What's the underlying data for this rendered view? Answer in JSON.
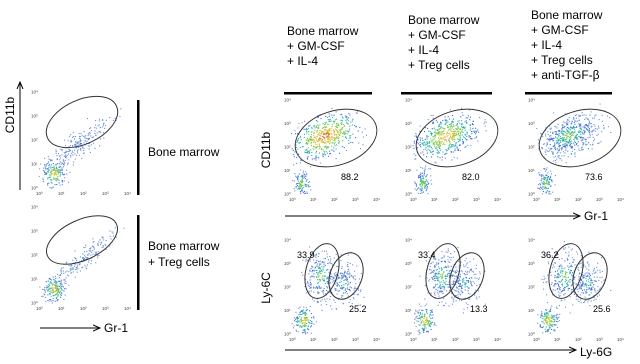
{
  "ticks": [
    "10⁰",
    "10¹",
    "10²",
    "10³",
    "10⁴"
  ],
  "left": {
    "y_axis": "CD11b",
    "x_axis": "Gr-1",
    "rows": [
      {
        "lines": [
          "Bone marrow"
        ]
      },
      {
        "lines": [
          "Bone marrow",
          "+ Treg cells"
        ]
      }
    ]
  },
  "columns": [
    {
      "lines": [
        "Bone marrow",
        "+ GM-CSF",
        "+ IL-4"
      ]
    },
    {
      "lines": [
        "Bone marrow",
        "+ GM-CSF",
        "+ IL-4",
        "+ Treg cells"
      ]
    },
    {
      "lines": [
        "Bone marrow",
        "+ GM-CSF",
        "+ IL-4",
        "+ Treg cells",
        "+ anti-TGF-β"
      ]
    }
  ],
  "top_row": {
    "y_axis": "CD11b",
    "x_axis": "Gr-1",
    "gates": [
      "88.2",
      "82.0",
      "73.6"
    ]
  },
  "bottom_row": {
    "y_axis": "Ly-6C",
    "x_axis": "Ly-6G",
    "gates": [
      [
        "33.9",
        "25.2"
      ],
      [
        "33.4",
        "13.3"
      ],
      [
        "36.2",
        "25.6"
      ]
    ]
  }
}
